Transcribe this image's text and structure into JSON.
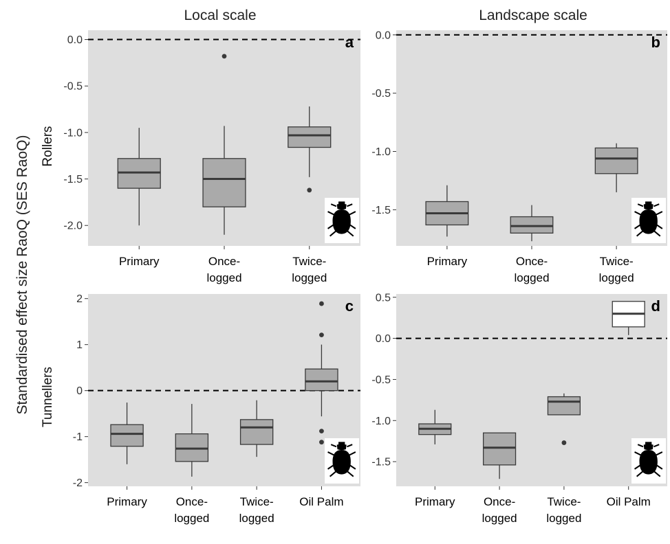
{
  "figure": {
    "column_titles": [
      "Local scale",
      "Landscape scale"
    ],
    "y_axis_label": "Standardised effect size RaoQ (SES RaoQ)",
    "row_labels": [
      "Rollers",
      "Tunnellers"
    ]
  },
  "colors": {
    "panel_bg": "#dedede",
    "box_fill": "#aaaaaa",
    "box_fill_oil_palm": "#ffffff",
    "line": "#3a3a3a",
    "reference_line": "#000000"
  },
  "icons": [
    "beetle-icon"
  ],
  "chart_data": [
    {
      "type": "box",
      "panel": "a",
      "scale": "Local scale",
      "group": "Rollers",
      "categories": [
        "Primary",
        "Once-\nlogged",
        "Twice-\nlogged"
      ],
      "ylim": [
        -2.22,
        0.1
      ],
      "yticks": [
        0.0,
        -0.5,
        -1.0,
        -1.5,
        -2.0
      ],
      "ytick_labels": [
        "0.0",
        "-0.5",
        "-1.0",
        "-1.5",
        "-2.0"
      ],
      "reference_line": 0,
      "boxes": [
        {
          "category": "Primary",
          "whisker_low": -2.0,
          "q1": -1.6,
          "median": -1.43,
          "q3": -1.28,
          "whisker_high": -0.95,
          "outliers": []
        },
        {
          "category": "Once-logged",
          "whisker_low": -2.1,
          "q1": -1.8,
          "median": -1.5,
          "q3": -1.28,
          "whisker_high": -0.93,
          "outliers": [
            -0.18
          ]
        },
        {
          "category": "Twice-logged",
          "whisker_low": -1.48,
          "q1": -1.16,
          "median": -1.03,
          "q3": -0.94,
          "whisker_high": -0.72,
          "outliers": [
            -1.62
          ]
        }
      ]
    },
    {
      "type": "box",
      "panel": "b",
      "scale": "Landscape scale",
      "group": "Rollers",
      "categories": [
        "Primary",
        "Once-\nlogged",
        "Twice-\nlogged"
      ],
      "ylim": [
        -1.81,
        0.04
      ],
      "yticks": [
        0.0,
        -0.5,
        -1.0,
        -1.5
      ],
      "ytick_labels": [
        "0.0",
        "-0.5",
        "-1.0",
        "-1.5"
      ],
      "reference_line": 0,
      "boxes": [
        {
          "category": "Primary",
          "whisker_low": -1.73,
          "q1": -1.63,
          "median": -1.53,
          "q3": -1.43,
          "whisker_high": -1.29,
          "outliers": []
        },
        {
          "category": "Once-logged",
          "whisker_low": -1.77,
          "q1": -1.7,
          "median": -1.64,
          "q3": -1.56,
          "whisker_high": -1.46,
          "outliers": []
        },
        {
          "category": "Twice-logged",
          "whisker_low": -1.35,
          "q1": -1.19,
          "median": -1.06,
          "q3": -0.97,
          "whisker_high": -0.93,
          "outliers": []
        }
      ]
    },
    {
      "type": "box",
      "panel": "c",
      "scale": "Local scale",
      "group": "Tunnellers",
      "categories": [
        "Primary",
        "Once-\nlogged",
        "Twice-\nlogged",
        "Oil Palm"
      ],
      "ylim": [
        -2.08,
        2.1
      ],
      "yticks": [
        2,
        1,
        0,
        -1,
        -2
      ],
      "ytick_labels": [
        "2",
        "1",
        "0",
        "-1",
        "-2"
      ],
      "reference_line": 0,
      "boxes": [
        {
          "category": "Primary",
          "whisker_low": -1.6,
          "q1": -1.21,
          "median": -0.94,
          "q3": -0.74,
          "whisker_high": -0.26,
          "outliers": []
        },
        {
          "category": "Once-logged",
          "whisker_low": -1.87,
          "q1": -1.54,
          "median": -1.26,
          "q3": -0.94,
          "whisker_high": -0.29,
          "outliers": []
        },
        {
          "category": "Twice-logged",
          "whisker_low": -1.44,
          "q1": -1.17,
          "median": -0.8,
          "q3": -0.63,
          "whisker_high": -0.21,
          "outliers": []
        },
        {
          "category": "Oil Palm",
          "whisker_low": -0.56,
          "q1": 0.0,
          "median": 0.2,
          "q3": 0.47,
          "whisker_high": 1.0,
          "outliers": [
            1.89,
            1.21,
            -0.88,
            -1.12
          ]
        }
      ]
    },
    {
      "type": "box",
      "panel": "d",
      "scale": "Landscape scale",
      "group": "Tunnellers",
      "categories": [
        "Primary",
        "Once-\nlogged",
        "Twice-\nlogged",
        "Oil Palm"
      ],
      "ylim": [
        -1.8,
        0.54
      ],
      "yticks": [
        0.5,
        0.0,
        -0.5,
        -1.0,
        -1.5
      ],
      "ytick_labels": [
        "0.5",
        "0.0",
        "-0.5",
        "-1.0",
        "-1.5"
      ],
      "reference_line": 0,
      "boxes": [
        {
          "category": "Primary",
          "whisker_low": -1.29,
          "q1": -1.17,
          "median": -1.1,
          "q3": -1.04,
          "whisker_high": -0.87,
          "outliers": []
        },
        {
          "category": "Once-logged",
          "whisker_low": -1.71,
          "q1": -1.54,
          "median": -1.33,
          "q3": -1.15,
          "whisker_high": -1.15,
          "outliers": []
        },
        {
          "category": "Twice-logged",
          "whisker_low": -0.93,
          "q1": -0.93,
          "median": -0.77,
          "q3": -0.71,
          "whisker_high": -0.67,
          "outliers": [
            -1.27
          ]
        },
        {
          "category": "Oil Palm",
          "whisker_low": 0.04,
          "q1": 0.14,
          "median": 0.3,
          "q3": 0.45,
          "whisker_high": 0.45,
          "outliers": []
        }
      ]
    }
  ]
}
